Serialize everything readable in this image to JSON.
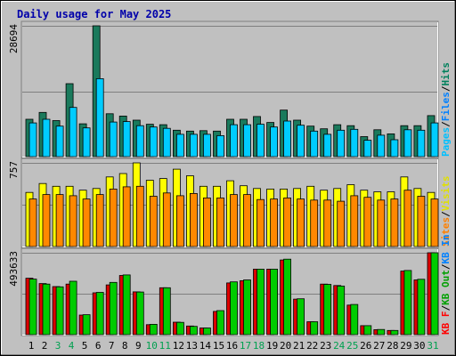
{
  "chart_data": {
    "type": "bar",
    "title": "Daily usage for May 2025",
    "categories": [
      "1",
      "2",
      "3",
      "4",
      "5",
      "6",
      "7",
      "8",
      "9",
      "10",
      "11",
      "12",
      "13",
      "14",
      "15",
      "16",
      "17",
      "18",
      "19",
      "20",
      "21",
      "22",
      "23",
      "24",
      "25",
      "26",
      "27",
      "28",
      "29",
      "30",
      "31"
    ],
    "weekend_days": [
      "3",
      "4",
      "10",
      "11",
      "17",
      "18",
      "24",
      "25",
      "31"
    ],
    "grid": true,
    "panels": [
      {
        "name": "hits-files-pages",
        "ymax_label": "28694",
        "ylim": [
          0,
          28694
        ],
        "legend": [
          {
            "text": "Pages",
            "color": "#00c0ff"
          },
          {
            "text": "/",
            "color": "#000000"
          },
          {
            "text": "Files",
            "color": "#0080ff"
          },
          {
            "text": "/",
            "color": "#000000"
          },
          {
            "text": "Hits",
            "color": "#00805c"
          }
        ],
        "series": [
          {
            "name": "Hits",
            "color": "#1a7a5c",
            "values": [
              8200,
              9700,
              7900,
              16000,
              7200,
              28694,
              9400,
              8900,
              8000,
              7100,
              7000,
              5800,
              5600,
              5700,
              5600,
              8200,
              8200,
              8800,
              7500,
              10200,
              8000,
              6700,
              6100,
              7000,
              6800,
              4400,
              5900,
              5000,
              6800,
              6800,
              9000
            ]
          },
          {
            "name": "Files",
            "color": "#00ccff",
            "values": [
              7400,
              8200,
              6700,
              10800,
              6300,
              17100,
              7600,
              7700,
              6800,
              6500,
              6200,
              4900,
              4900,
              4900,
              4600,
              7000,
              7000,
              7100,
              6500,
              7800,
              6900,
              5600,
              4900,
              5800,
              6000,
              3600,
              4700,
              3700,
              5900,
              5800,
              7400
            ]
          }
        ]
      },
      {
        "name": "visits-sites",
        "ymax_label": "757",
        "ylim": [
          0,
          757
        ],
        "legend": [
          {
            "text": "Sites",
            "color": "#ff8000"
          },
          {
            "text": "/",
            "color": "#000000"
          },
          {
            "text": "Visits",
            "color": "#e0e000"
          }
        ],
        "series": [
          {
            "name": "Visits",
            "color": "#ffff00",
            "values": [
              490,
              570,
              545,
              545,
              510,
              525,
              630,
              660,
              757,
              600,
              615,
              700,
              640,
              545,
              545,
              595,
              550,
              525,
              520,
              520,
              525,
              545,
              510,
              525,
              560,
              510,
              495,
              495,
              630,
              525,
              490
            ]
          },
          {
            "name": "Sites",
            "color": "#ff8800",
            "values": [
              430,
              470,
              470,
              460,
              430,
              470,
              520,
              540,
              545,
              455,
              485,
              460,
              480,
              440,
              440,
              470,
              470,
              425,
              430,
              440,
              430,
              420,
              420,
              410,
              460,
              445,
              420,
              430,
              510,
              455,
              430
            ]
          }
        ]
      },
      {
        "name": "kb-in-out",
        "ymax_label": "493633",
        "ylim": [
          0,
          493633
        ],
        "legend": [
          {
            "text": "KB F",
            "color": "#ff0000"
          },
          {
            "text": "/",
            "color": "#000000"
          },
          {
            "text": "KB Out",
            "color": "#00a000"
          },
          {
            "text": "/",
            "color": "#000000"
          },
          {
            "text": "KB In",
            "color": "#0080ff"
          }
        ],
        "series": [
          {
            "name": "KB F",
            "color": "#dd0000",
            "values": [
              340000,
              308000,
              290000,
              305000,
              118000,
              252000,
              300000,
              357000,
              258000,
              60000,
              283000,
              75000,
              52000,
              40000,
              140000,
              312000,
              325000,
              395000,
              395000,
              450000,
              214000,
              78000,
              305000,
              296000,
              178000,
              54000,
              30000,
              25000,
              383000,
              330000,
              493633
            ]
          },
          {
            "name": "KB Out",
            "color": "#00cc00",
            "values": [
              335000,
              305000,
              288000,
              322000,
              120000,
              255000,
              315000,
              360000,
              257000,
              62000,
              283000,
              74000,
              50000,
              40000,
              145000,
              318000,
              330000,
              395000,
              395000,
              455000,
              216000,
              78000,
              303000,
              293000,
              182000,
              54000,
              31000,
              25000,
              387000,
              334000,
              493633
            ]
          }
        ]
      }
    ]
  }
}
